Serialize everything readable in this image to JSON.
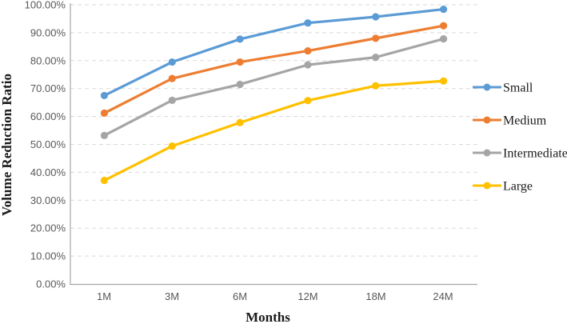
{
  "chart_data": {
    "type": "line",
    "title": "",
    "xlabel": "Months",
    "ylabel": "Volume Reduction Ratio",
    "categories": [
      "1M",
      "3M",
      "6M",
      "12M",
      "18M",
      "24M"
    ],
    "series": [
      {
        "name": "Small",
        "color": "#5B9BD5",
        "values": [
          67.5,
          79.5,
          87.7,
          93.5,
          95.7,
          98.4
        ]
      },
      {
        "name": "Medium",
        "color": "#ED7D31",
        "values": [
          61.2,
          73.6,
          79.5,
          83.5,
          88.0,
          92.5
        ]
      },
      {
        "name": "Intermediate",
        "color": "#A5A5A5",
        "values": [
          53.2,
          65.8,
          71.5,
          78.5,
          81.2,
          87.8
        ]
      },
      {
        "name": "Large",
        "color": "#FFC000",
        "values": [
          37.1,
          49.4,
          57.8,
          65.7,
          71.0,
          72.7
        ]
      }
    ],
    "y_ticks": [
      "100.00%",
      "90.00%",
      "80.00%",
      "70.00%",
      "60.00%",
      "50.00%",
      "40.00%",
      "30.00%",
      "20.00%",
      "10.00%",
      "0.00%"
    ],
    "ylim": [
      0,
      100
    ],
    "grid": "horizontal-dashed",
    "legend_position": "right",
    "marker": "circle"
  },
  "colors": {
    "grid": "#D9D9D9",
    "axis": "#A6A6A6",
    "tick_text": "#595959",
    "title_text": "#1a1a1a"
  }
}
